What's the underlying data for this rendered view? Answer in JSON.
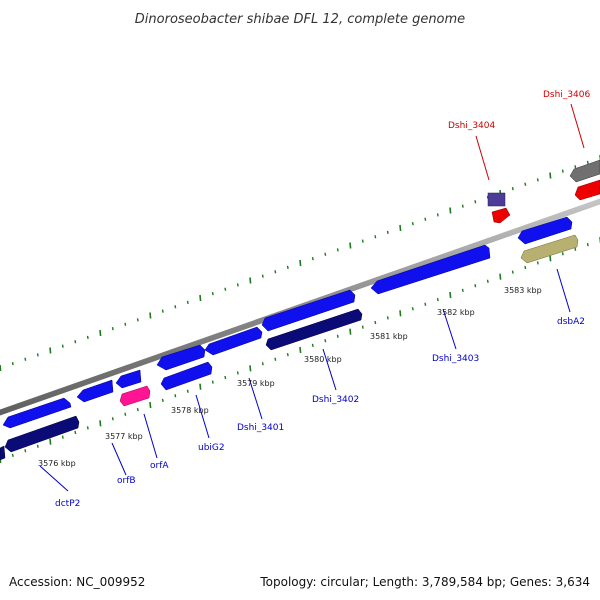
{
  "title": "Dinoroseobacter shibae DFL 12, complete genome",
  "footer": {
    "accession": "Accession: NC_009952",
    "summary": "Topology: circular; Length: 3,789,584 bp; Genes: 3,634"
  },
  "colors": {
    "backbone": "#8f8f8f",
    "forward_gene": "#1010ee",
    "reverse_gene": "#0b0b78",
    "rna": "#ff1493",
    "highlight": "#ee0000",
    "other": "#b8b070",
    "grey_gene": "#707070",
    "purple_gene": "#4d3d99",
    "tick": "#1e7a1e",
    "label_blue": "#0000cc",
    "label_red": "#cc0000"
  },
  "ticks": [
    {
      "label": "3576 kbp"
    },
    {
      "label": "3577 kbp"
    },
    {
      "label": "3578 kbp"
    },
    {
      "label": "3579 kbp"
    },
    {
      "label": "3580 kbp"
    },
    {
      "label": "3581 kbp"
    },
    {
      "label": "3582 kbp"
    },
    {
      "label": "3583 kbp"
    }
  ],
  "gene_labels": [
    {
      "text": "dctP2",
      "color": "blue"
    },
    {
      "text": "orfB",
      "color": "blue"
    },
    {
      "text": "orfA",
      "color": "blue"
    },
    {
      "text": "ubiG2",
      "color": "blue"
    },
    {
      "text": "Dshi_3401",
      "color": "blue"
    },
    {
      "text": "Dshi_3402",
      "color": "blue"
    },
    {
      "text": "Dshi_3403",
      "color": "blue"
    },
    {
      "text": "dsbA2",
      "color": "blue"
    },
    {
      "text": "Dshi_3404",
      "color": "red"
    },
    {
      "text": "Dshi_3406",
      "color": "red"
    }
  ]
}
